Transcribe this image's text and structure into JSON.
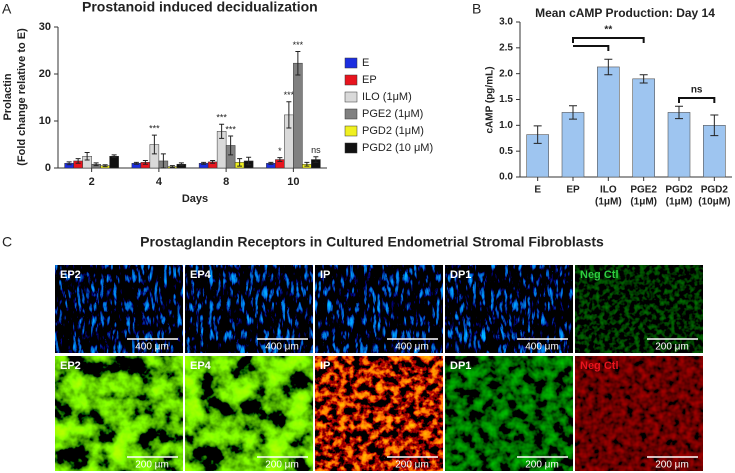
{
  "panel_labels": [
    "A",
    "B",
    "C"
  ],
  "chart_data": [
    {
      "type": "bar",
      "title": "Prostanoid induced decidualization",
      "y_label": [
        "Prolactin",
        "(Fold change relative to E)"
      ],
      "x_label": "Days",
      "categories": [
        "2",
        "4",
        "8",
        "10"
      ],
      "ylim": [
        0,
        30
      ],
      "yticks": [
        0,
        10,
        20,
        30
      ],
      "legend": "right",
      "series": [
        {
          "name": "E",
          "color": "#1c2ee0",
          "values": [
            1.0,
            1.0,
            1.0,
            1.0
          ],
          "errors": [
            0.3,
            0.2,
            0.2,
            0.2
          ]
        },
        {
          "name": "EP",
          "color": "#e8141e",
          "values": [
            1.5,
            1.2,
            1.3,
            1.8
          ],
          "errors": [
            0.5,
            0.4,
            0.3,
            0.4
          ],
          "significance": [
            null,
            null,
            null,
            "*"
          ]
        },
        {
          "name": "ILO (1μM)",
          "color": "#d9d9d9",
          "values": [
            2.5,
            5.0,
            7.8,
            11.3
          ],
          "errors": [
            0.8,
            2.0,
            1.5,
            2.8
          ],
          "significance": [
            null,
            "***",
            "***",
            "***"
          ]
        },
        {
          "name": "PGE2 (1μM)",
          "color": "#808080",
          "values": [
            0.8,
            1.5,
            4.8,
            22.3
          ],
          "errors": [
            0.3,
            1.5,
            2.0,
            2.5
          ],
          "significance": [
            null,
            null,
            "***",
            "***"
          ]
        },
        {
          "name": "PGD2 (1μM)",
          "color": "#f0f020",
          "values": [
            0.5,
            0.3,
            1.2,
            0.8
          ],
          "errors": [
            0.2,
            0.2,
            0.8,
            0.4
          ]
        },
        {
          "name": "PGD2 (10 μM)",
          "color": "#111111",
          "values": [
            2.5,
            0.8,
            1.5,
            1.8
          ],
          "errors": [
            0.3,
            0.3,
            0.8,
            0.6
          ],
          "significance": [
            null,
            null,
            null,
            "ns"
          ]
        }
      ]
    },
    {
      "type": "bar",
      "title": "Mean cAMP Production: Day 14",
      "y_label": "cAMP (pg/mL)",
      "categories": [
        [
          "E"
        ],
        [
          "EP"
        ],
        [
          "ILO",
          "(1μM)"
        ],
        [
          "PGE2",
          "(1μM)"
        ],
        [
          "PGD2",
          "(1μM)"
        ],
        [
          "PGD2",
          "(10μM)"
        ]
      ],
      "values": [
        0.82,
        1.25,
        2.13,
        1.9,
        1.25,
        1.0
      ],
      "errors": [
        0.17,
        0.13,
        0.15,
        0.08,
        0.12,
        0.2
      ],
      "color": "#9ec5f0",
      "ylim": [
        0,
        3
      ],
      "yticks": [
        {
          "value": 0,
          "label": "0.0"
        },
        0.5,
        {
          "value": 1,
          "label": "1.0"
        },
        1.5,
        {
          "value": 2,
          "label": "2.0"
        },
        2.5,
        {
          "value": 3,
          "label": "3.0"
        }
      ],
      "annotations": [
        "**",
        "ns"
      ]
    }
  ],
  "panel_c": {
    "title": "Prostaglandin Receptors in Cultured Endometrial Stromal Fibroblasts",
    "rows": [
      [
        {
          "label": "EP2",
          "scale": "400 μm"
        },
        {
          "label": "EP4",
          "scale": "400 μm"
        },
        {
          "label": "IP",
          "scale": "400 μm"
        },
        {
          "label": "DP1",
          "scale": "400 μm"
        },
        {
          "label": "Neg Ctl",
          "scale": "200 μm"
        }
      ],
      [
        {
          "label": "EP2",
          "scale": "200 μm"
        },
        {
          "label": "EP4",
          "scale": "200 μm"
        },
        {
          "label": "IP",
          "scale": "200 μm"
        },
        {
          "label": "DP1",
          "scale": "200 μm"
        },
        {
          "label": "Neg Ctl",
          "scale": "200 μm"
        }
      ]
    ]
  }
}
